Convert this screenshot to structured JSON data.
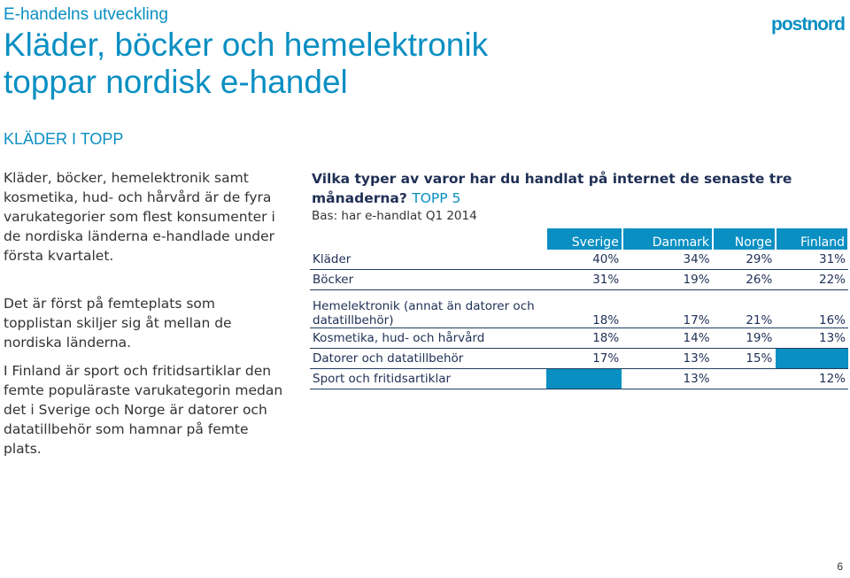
{
  "header": {
    "kicker": "E-handelns utveckling",
    "title_line1": "Kläder, böcker och hemelektronik",
    "title_line2": "toppar nordisk e-handel",
    "logo": "postnord"
  },
  "left": {
    "section_title": "KLÄDER I TOPP",
    "paragraph1": "Kläder, böcker, hemelektronik samt kosmetika, hud- och hårvård är de fyra varukategorier som flest konsumenter i de nordiska länderna e-handlade under första kvartalet.",
    "paragraph2": "Det är först på femteplats som topplistan skiljer sig åt mellan de nordiska länderna.",
    "paragraph3": "I Finland är sport och fritidsartiklar den femte populäraste varukategorin medan det i Sverige och Norge är datorer och datatillbehör som hamnar på femte plats."
  },
  "chart": {
    "question": "Vilka typer av varor har du handlat på internet de senaste tre månaderna?",
    "question_suffix": "TOPP 5",
    "base": "Bas: har e-handlat Q1 2014",
    "columns": [
      "Sverige",
      "Danmark",
      "Norge",
      "Finland"
    ],
    "rows": [
      {
        "label": "Kläder",
        "values": [
          "40%",
          "34%",
          "29%",
          "31%"
        ]
      },
      {
        "label": "Böcker",
        "values": [
          "31%",
          "19%",
          "26%",
          "22%"
        ]
      },
      {
        "label": "Hemelektronik (annat än datorer och datatillbehör)",
        "values": [
          "18%",
          "17%",
          "21%",
          "16%"
        ]
      },
      {
        "label": "Kosmetika, hud- och hårvård",
        "values": [
          "18%",
          "14%",
          "19%",
          "13%"
        ]
      },
      {
        "label": "Datorer och datatillbehör",
        "values": [
          "17%",
          "13%",
          "15%",
          ""
        ]
      },
      {
        "label": "Sport och fritidsartiklar",
        "values": [
          "",
          "13%",
          "",
          "12%"
        ]
      }
    ]
  },
  "footer": {
    "page_number": "6"
  },
  "colors": {
    "accent": "#0a8fc2",
    "navy": "#1f2f55"
  }
}
